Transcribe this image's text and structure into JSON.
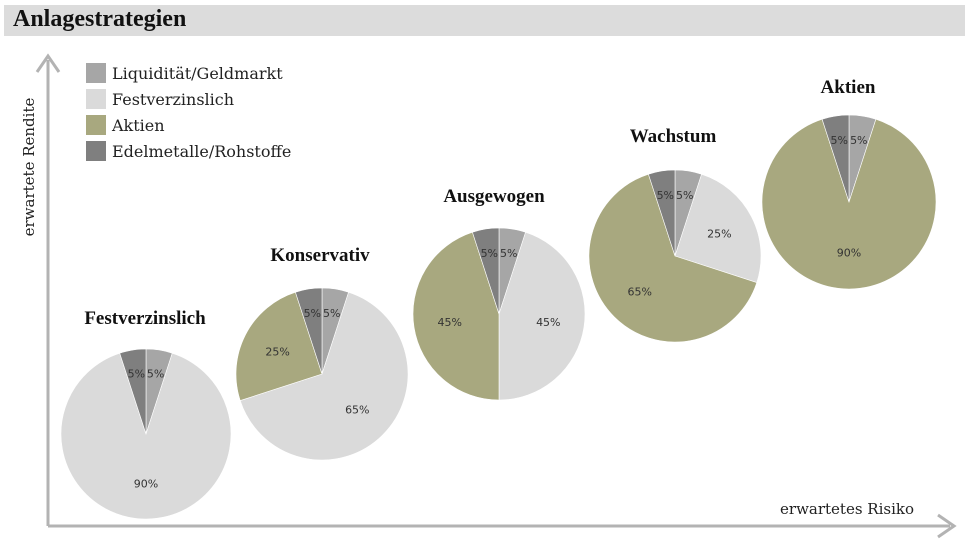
{
  "title": "Anlagestrategien",
  "chart_data": {
    "type": "pie",
    "title": "Anlagestrategien",
    "xlabel": "erwartetes Risiko",
    "ylabel": "erwartete Rendite",
    "legend_position": "top-left",
    "categories": [
      "Liquidität/Geldmarkt",
      "Festverzinslich",
      "Aktien",
      "Edelmetalle/Rohstoffe"
    ],
    "colors": [
      "#a6a6a6",
      "#dadada",
      "#a8a87f",
      "#7f7f7f"
    ],
    "pies": [
      {
        "name": "Festverzinslich",
        "values": [
          5,
          90,
          0,
          5
        ],
        "labels": [
          "5%",
          "90%",
          "",
          "5%"
        ]
      },
      {
        "name": "Konservativ",
        "values": [
          5,
          65,
          25,
          5
        ],
        "labels": [
          "5%",
          "65%",
          "25%",
          "5%"
        ]
      },
      {
        "name": "Ausgewogen",
        "values": [
          5,
          45,
          45,
          5
        ],
        "labels": [
          "5%",
          "45%",
          "45%",
          "5%"
        ]
      },
      {
        "name": "Wachstum",
        "values": [
          5,
          25,
          65,
          5
        ],
        "labels": [
          "5%",
          "25%",
          "65%",
          "5%"
        ]
      },
      {
        "name": "Aktien",
        "values": [
          5,
          0,
          90,
          5
        ],
        "labels": [
          "5%",
          "",
          "90%",
          "5%"
        ]
      }
    ]
  }
}
